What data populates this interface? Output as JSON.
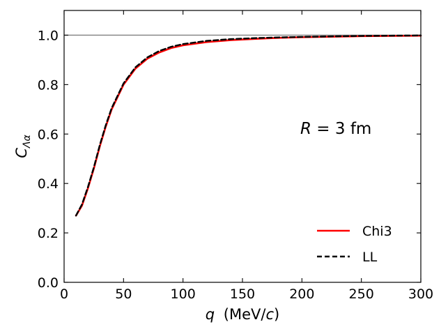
{
  "chart_data": {
    "type": "line",
    "xlabel_var": "q",
    "xlabel_rest": "(MeV/",
    "xlabel_unit_var": "c",
    "xlabel_close": ")",
    "ylabel_main": "C",
    "ylabel_sub": "Λα",
    "xlim": [
      0,
      300
    ],
    "ylim": [
      0.0,
      1.1
    ],
    "xticks": [
      "0",
      "50",
      "100",
      "150",
      "200",
      "250",
      "300"
    ],
    "xtick_values": [
      0,
      50,
      100,
      150,
      200,
      250,
      300
    ],
    "yticks": [
      "0.0",
      "0.2",
      "0.4",
      "0.6",
      "0.8",
      "1.0"
    ],
    "ytick_values": [
      0.0,
      0.2,
      0.4,
      0.6,
      0.8,
      1.0
    ],
    "reference_line": 1.0,
    "reference_line_color": "#808080",
    "annotation_var": "R",
    "annotation_rest": " = 3 fm",
    "legend_position": "lower-right",
    "x": [
      10,
      15,
      20,
      25,
      30,
      35,
      40,
      50,
      60,
      70,
      80,
      90,
      100,
      120,
      140,
      160,
      180,
      200,
      250,
      300
    ],
    "series": [
      {
        "name": "Chi3",
        "color": "#ff0000",
        "style": "solid",
        "values": [
          0.27,
          0.31,
          0.38,
          0.46,
          0.55,
          0.63,
          0.7,
          0.8,
          0.865,
          0.905,
          0.93,
          0.948,
          0.959,
          0.972,
          0.98,
          0.985,
          0.989,
          0.992,
          0.996,
          0.998
        ]
      },
      {
        "name": "LL",
        "color": "#000000",
        "style": "dashed",
        "values": [
          0.27,
          0.315,
          0.385,
          0.465,
          0.555,
          0.635,
          0.705,
          0.805,
          0.87,
          0.91,
          0.936,
          0.953,
          0.964,
          0.977,
          0.984,
          0.988,
          0.991,
          0.993,
          0.997,
          0.999
        ]
      }
    ]
  }
}
